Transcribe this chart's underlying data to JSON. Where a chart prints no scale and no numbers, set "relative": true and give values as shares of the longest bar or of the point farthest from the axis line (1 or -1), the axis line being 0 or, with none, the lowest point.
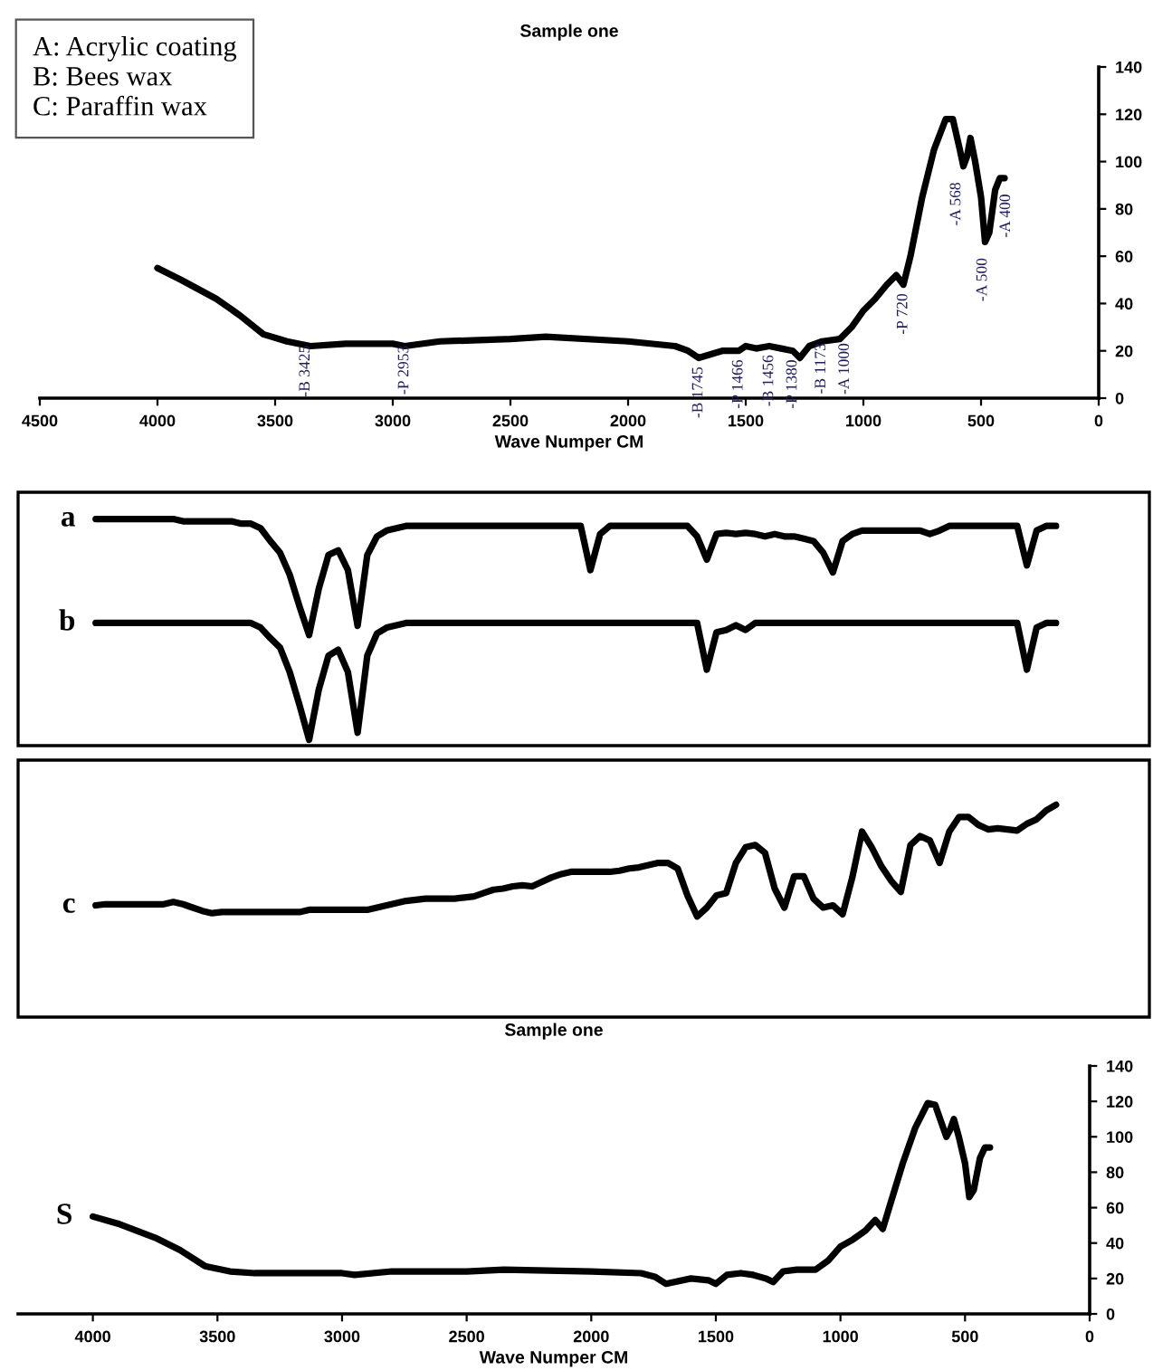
{
  "chart_data": [
    {
      "type": "line",
      "title": "Sample one",
      "xlabel": "Wave Numper CM",
      "annotations": [
        "A: Acrylic coating",
        "B: Bees wax",
        "C: Paraffin wax",
        {
          "text": "-B 3425",
          "x": 3370,
          "y": 26
        },
        {
          "text": "-P 2953",
          "x": 2950,
          "y": 26
        },
        {
          "text": "-B 1745",
          "x": 1700,
          "y": 17
        },
        {
          "text": "-P 1466",
          "x": 1530,
          "y": 20
        },
        {
          "text": "-B 1456",
          "x": 1400,
          "y": 22
        },
        {
          "text": "-P 1380",
          "x": 1300,
          "y": 20
        },
        {
          "text": "-B 1173",
          "x": 1178,
          "y": 27
        },
        {
          "text": "-A 1000",
          "x": 1078,
          "y": 27
        },
        {
          "text": "-P 720",
          "x": 830,
          "y": 48
        },
        {
          "text": "-A 568",
          "x": 604,
          "y": 95
        },
        {
          "text": "-A 500",
          "x": 492,
          "y": 63
        },
        {
          "text": "-A 400",
          "x": 393,
          "y": 90
        }
      ],
      "x": [
        4000,
        3900,
        3750,
        3650,
        3550,
        3450,
        3350,
        3200,
        3000,
        2950,
        2800,
        2500,
        2350,
        2000,
        1800,
        1745,
        1700,
        1600,
        1530,
        1500,
        1456,
        1400,
        1350,
        1300,
        1270,
        1230,
        1175,
        1100,
        1050,
        1000,
        950,
        900,
        860,
        830,
        800,
        750,
        700,
        650,
        620,
        590,
        575,
        560,
        545,
        525,
        500,
        483,
        465,
        440,
        420,
        400
      ],
      "series": [
        {
          "color": "#000000",
          "values": [
            55,
            50,
            42,
            35,
            27,
            24,
            22,
            23,
            23,
            22,
            24,
            25,
            26,
            24,
            22,
            20,
            17,
            20,
            20,
            22,
            21,
            22,
            21,
            20,
            17,
            22,
            24,
            25,
            30,
            37,
            42,
            48,
            52,
            48,
            60,
            85,
            105,
            118,
            118,
            105,
            98,
            102,
            110,
            100,
            85,
            66,
            70,
            88,
            93,
            93
          ]
        }
      ],
      "xlim": [
        4500,
        0
      ],
      "xticks": [
        4500,
        4000,
        3500,
        3000,
        2500,
        2000,
        1500,
        1000,
        500,
        0
      ],
      "ylim": [
        0,
        140
      ],
      "yticks": [
        0,
        20,
        40,
        60,
        80,
        100,
        120,
        140
      ]
    },
    {
      "type": "line",
      "relative": true,
      "categories": [
        null,
        null,
        null,
        null,
        null,
        null,
        null,
        null,
        null,
        null,
        null,
        null,
        null,
        null,
        null,
        null,
        null,
        null,
        null,
        null,
        null,
        null,
        null,
        null,
        null,
        null,
        null,
        null,
        null,
        null,
        null,
        null,
        null,
        null,
        null,
        null,
        null,
        null,
        null,
        null,
        null,
        null,
        null,
        null,
        null,
        null,
        null,
        null,
        null,
        null,
        null,
        null,
        null,
        null,
        null,
        null,
        null,
        null,
        null,
        null,
        null,
        null,
        null,
        null,
        null,
        null,
        null,
        null,
        null,
        null,
        null,
        null,
        null,
        null,
        null,
        null,
        null,
        null,
        null,
        null,
        null,
        null,
        null,
        null,
        null,
        null,
        null,
        null,
        null,
        null,
        null,
        null,
        null,
        null,
        null,
        null,
        null,
        null,
        null,
        null
      ],
      "series": [
        {
          "name": "a",
          "color": "#000000",
          "values": [
            1.0,
            1.0,
            1.0,
            1.0,
            1.0,
            1.0,
            1.0,
            1.0,
            1.0,
            0.98,
            0.98,
            0.98,
            0.98,
            0.98,
            0.98,
            0.96,
            0.96,
            0.92,
            0.81,
            0.71,
            0.52,
            0.25,
            0.0,
            0.4,
            0.69,
            0.73,
            0.56,
            0.08,
            0.69,
            0.85,
            0.9,
            0.92,
            0.94,
            0.94,
            0.94,
            0.94,
            0.94,
            0.94,
            0.94,
            0.94,
            0.94,
            0.94,
            0.94,
            0.94,
            0.94,
            0.94,
            0.94,
            0.94,
            0.94,
            0.94,
            0.94,
            0.56,
            0.87,
            0.94,
            0.94,
            0.94,
            0.94,
            0.94,
            0.94,
            0.94,
            0.94,
            0.94,
            0.85,
            0.65,
            0.87,
            0.88,
            0.87,
            0.88,
            0.87,
            0.85,
            0.87,
            0.85,
            0.85,
            0.83,
            0.81,
            0.71,
            0.54,
            0.81,
            0.87,
            0.9,
            0.9,
            0.9,
            0.9,
            0.9,
            0.9,
            0.9,
            0.87,
            0.9,
            0.94,
            0.94,
            0.94,
            0.94,
            0.94,
            0.94,
            0.94,
            0.94,
            0.6,
            0.9,
            0.94,
            0.94
          ]
        }
      ]
    },
    {
      "type": "line",
      "relative": true,
      "categories": [
        null,
        null,
        null,
        null,
        null,
        null,
        null,
        null,
        null,
        null,
        null,
        null,
        null,
        null,
        null,
        null,
        null,
        null,
        null,
        null,
        null,
        null,
        null,
        null,
        null,
        null,
        null,
        null,
        null,
        null,
        null,
        null,
        null,
        null,
        null,
        null,
        null,
        null,
        null,
        null,
        null,
        null,
        null,
        null,
        null,
        null,
        null,
        null,
        null,
        null,
        null,
        null,
        null,
        null,
        null,
        null,
        null,
        null,
        null,
        null,
        null,
        null,
        null,
        null,
        null,
        null,
        null,
        null,
        null,
        null,
        null,
        null,
        null,
        null,
        null,
        null,
        null,
        null,
        null,
        null,
        null,
        null,
        null,
        null,
        null,
        null,
        null,
        null,
        null,
        null,
        null,
        null,
        null,
        null,
        null,
        null,
        null,
        null,
        null,
        null
      ],
      "series": [
        {
          "name": "b",
          "color": "#000000",
          "values": [
            1.0,
            1.0,
            1.0,
            1.0,
            1.0,
            1.0,
            1.0,
            1.0,
            1.0,
            1.0,
            1.0,
            1.0,
            1.0,
            1.0,
            1.0,
            1.0,
            1.0,
            0.96,
            0.87,
            0.79,
            0.58,
            0.3,
            0.0,
            0.43,
            0.72,
            0.77,
            0.58,
            0.06,
            0.72,
            0.91,
            0.96,
            0.98,
            1.0,
            1.0,
            1.0,
            1.0,
            1.0,
            1.0,
            1.0,
            1.0,
            1.0,
            1.0,
            1.0,
            1.0,
            1.0,
            1.0,
            1.0,
            1.0,
            1.0,
            1.0,
            1.0,
            1.0,
            1.0,
            1.0,
            1.0,
            1.0,
            1.0,
            1.0,
            1.0,
            1.0,
            1.0,
            1.0,
            1.0,
            0.6,
            0.92,
            0.94,
            0.98,
            0.94,
            1.0,
            1.0,
            1.0,
            1.0,
            1.0,
            1.0,
            1.0,
            1.0,
            1.0,
            1.0,
            1.0,
            1.0,
            1.0,
            1.0,
            1.0,
            1.0,
            1.0,
            1.0,
            1.0,
            1.0,
            1.0,
            1.0,
            1.0,
            1.0,
            1.0,
            1.0,
            1.0,
            1.0,
            0.6,
            0.96,
            1.0,
            1.0
          ]
        }
      ]
    },
    {
      "type": "line",
      "relative": true,
      "categories": [
        null,
        null,
        null,
        null,
        null,
        null,
        null,
        null,
        null,
        null,
        null,
        null,
        null,
        null,
        null,
        null,
        null,
        null,
        null,
        null,
        null,
        null,
        null,
        null,
        null,
        null,
        null,
        null,
        null,
        null,
        null,
        null,
        null,
        null,
        null,
        null,
        null,
        null,
        null,
        null,
        null,
        null,
        null,
        null,
        null,
        null,
        null,
        null,
        null,
        null,
        null,
        null,
        null,
        null,
        null,
        null,
        null,
        null,
        null,
        null,
        null,
        null,
        null,
        null,
        null,
        null,
        null,
        null,
        null,
        null,
        null,
        null,
        null,
        null,
        null,
        null,
        null,
        null,
        null,
        null,
        null,
        null,
        null,
        null,
        null,
        null,
        null,
        null,
        null,
        null,
        null,
        null,
        null,
        null,
        null,
        null,
        null,
        null,
        null,
        null
      ],
      "series": [
        {
          "name": "c",
          "color": "#000000",
          "values": [
            0.1,
            0.11,
            0.11,
            0.11,
            0.11,
            0.11,
            0.11,
            0.11,
            0.13,
            0.11,
            0.08,
            0.05,
            0.03,
            0.04,
            0.04,
            0.04,
            0.04,
            0.04,
            0.04,
            0.04,
            0.04,
            0.04,
            0.06,
            0.06,
            0.06,
            0.06,
            0.06,
            0.06,
            0.06,
            0.08,
            0.1,
            0.12,
            0.14,
            0.15,
            0.16,
            0.16,
            0.16,
            0.16,
            0.17,
            0.18,
            0.21,
            0.24,
            0.25,
            0.27,
            0.28,
            0.27,
            0.31,
            0.35,
            0.38,
            0.4,
            0.4,
            0.4,
            0.4,
            0.4,
            0.41,
            0.43,
            0.44,
            0.46,
            0.48,
            0.48,
            0.43,
            0.19,
            0.0,
            0.08,
            0.19,
            0.21,
            0.48,
            0.62,
            0.64,
            0.57,
            0.25,
            0.08,
            0.36,
            0.36,
            0.16,
            0.08,
            0.1,
            0.02,
            0.35,
            0.76,
            0.62,
            0.45,
            0.32,
            0.22,
            0.64,
            0.72,
            0.68,
            0.48,
            0.76,
            0.89,
            0.89,
            0.82,
            0.78,
            0.79,
            0.78,
            0.77,
            0.83,
            0.87,
            0.95,
            1.0
          ]
        }
      ]
    },
    {
      "type": "line",
      "title": "Sample one",
      "xlabel": "Wave Numper CM",
      "x": [
        4000,
        3900,
        3750,
        3650,
        3550,
        3450,
        3350,
        3200,
        3000,
        2950,
        2800,
        2500,
        2350,
        2000,
        1800,
        1745,
        1700,
        1600,
        1530,
        1500,
        1456,
        1400,
        1350,
        1300,
        1270,
        1230,
        1175,
        1100,
        1050,
        1000,
        950,
        900,
        860,
        830,
        800,
        750,
        700,
        650,
        620,
        590,
        575,
        560,
        545,
        525,
        500,
        483,
        465,
        440,
        420,
        400
      ],
      "series": [
        {
          "name": "S",
          "color": "#000000",
          "values": [
            55,
            51,
            43,
            36,
            27,
            24,
            23,
            23,
            23,
            22,
            24,
            24,
            25,
            24,
            23,
            21,
            17,
            20,
            19,
            17,
            22,
            23,
            22,
            20,
            18,
            24,
            25,
            25,
            30,
            38,
            42,
            47,
            53,
            48,
            62,
            85,
            105,
            119,
            118,
            106,
            100,
            104,
            110,
            100,
            85,
            66,
            70,
            88,
            94,
            94
          ]
        }
      ],
      "xlim": [
        4300,
        0
      ],
      "xticks": [
        4000,
        3500,
        3000,
        2500,
        2000,
        1500,
        1000,
        500,
        0
      ],
      "ylim": [
        0,
        140
      ],
      "yticks": [
        0,
        20,
        40,
        60,
        80,
        100,
        120,
        140
      ]
    }
  ]
}
